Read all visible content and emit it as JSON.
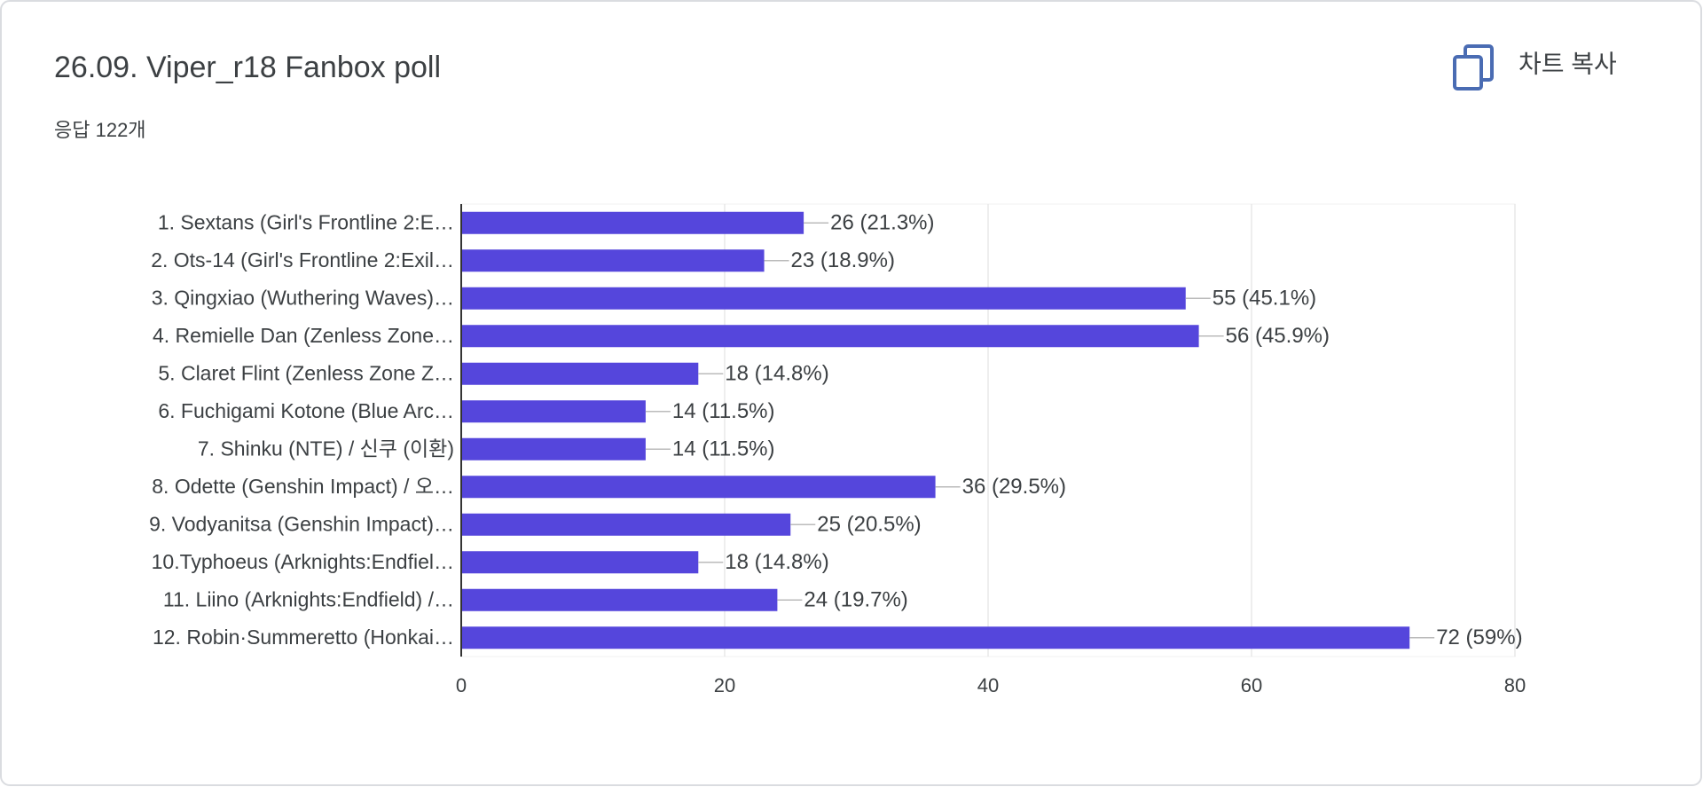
{
  "toolbar": {
    "copy_button": "차트 복사"
  },
  "chart_data": {
    "type": "bar",
    "orientation": "horizontal",
    "title": "26.09. Viper_r18 Fanbox poll",
    "subtitle": "응답 122개",
    "categories": [
      "1. Sextans (Girl's Frontline 2:E…",
      "2. Ots-14 (Girl's Frontline 2:Exil…",
      "3. Qingxiao (Wuthering Waves)…",
      "4. Remielle Dan (Zenless Zone…",
      "5. Claret Flint (Zenless Zone Z…",
      "6. Fuchigami Kotone (Blue Arc…",
      "7. Shinku (NTE) / 신쿠 (이환)",
      "8. Odette (Genshin Impact) / 오…",
      "9. Vodyanitsa (Genshin Impact)…",
      "10.Typhoeus (Arknights:Endfiel…",
      "11. Liino (Arknights:Endfield) /…",
      "12. Robin·Summeretto (Honkai…"
    ],
    "values": [
      26,
      23,
      55,
      56,
      18,
      14,
      14,
      36,
      25,
      18,
      24,
      72
    ],
    "value_labels": [
      "26 (21.3%)",
      "23 (18.9%)",
      "55 (45.1%)",
      "56 (45.9%)",
      "18 (14.8%)",
      "14 (11.5%)",
      "14 (11.5%)",
      "36 (29.5%)",
      "25 (20.5%)",
      "18 (14.8%)",
      "24 (19.7%)",
      "72 (59%)"
    ],
    "color": "#5546dc",
    "xlim": [
      0,
      80
    ],
    "xticks": [
      0,
      20,
      40,
      60,
      80
    ],
    "grid": true
  }
}
